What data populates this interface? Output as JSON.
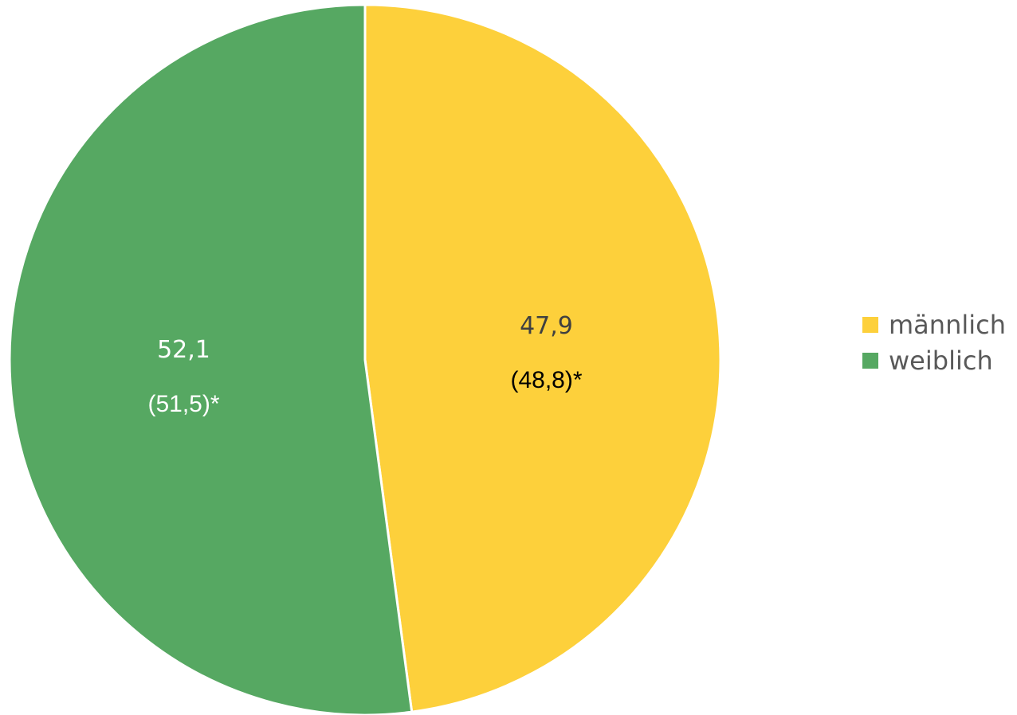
{
  "chart_data": {
    "type": "pie",
    "title": "",
    "legend_position": "right",
    "slices": [
      {
        "name": "männlich",
        "value": 47.9,
        "value_label": "47,9",
        "secondary_label": "(48,8)*",
        "color": "#fdd03b",
        "value_label_color": "#404040",
        "secondary_label_color": "#000000"
      },
      {
        "name": "weiblich",
        "value": 52.1,
        "value_label": "52,1",
        "secondary_label": "(51,5)*",
        "color": "#56a862",
        "value_label_color": "#ffffff",
        "secondary_label_color": "#ffffff"
      }
    ]
  }
}
